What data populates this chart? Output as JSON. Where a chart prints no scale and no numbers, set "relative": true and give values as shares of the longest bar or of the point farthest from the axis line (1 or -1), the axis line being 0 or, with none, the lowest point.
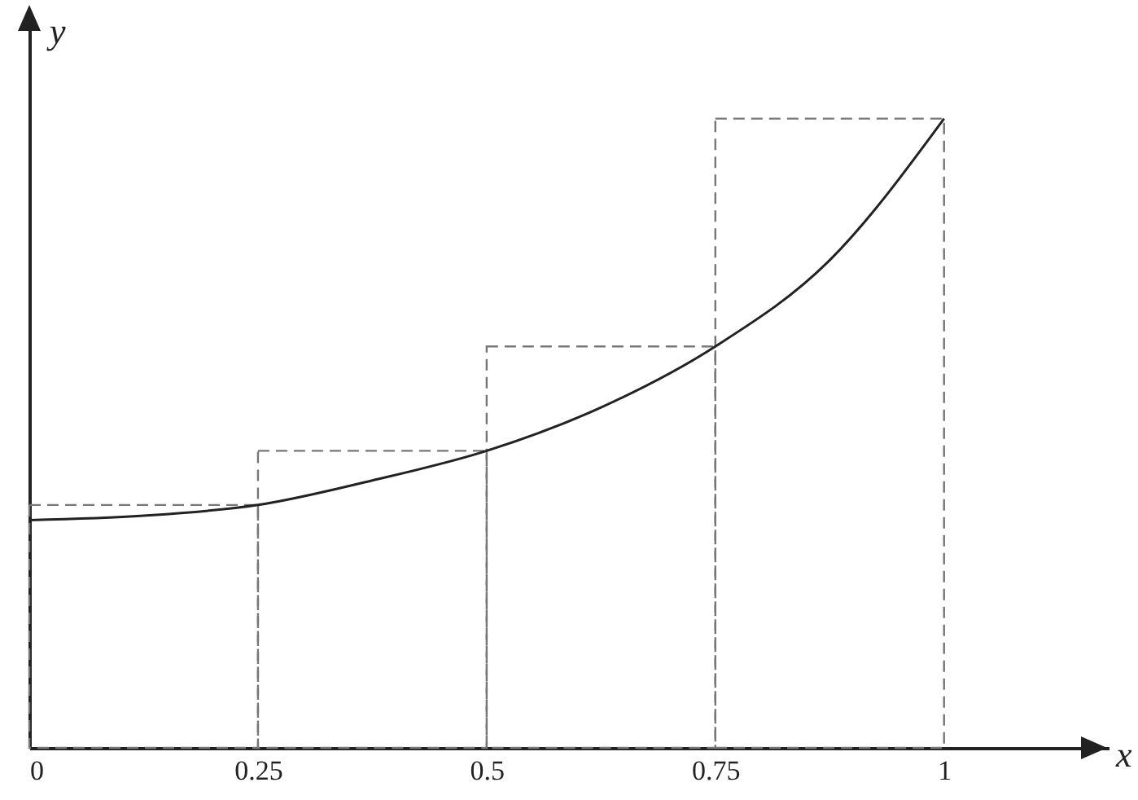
{
  "chart_data": {
    "type": "line",
    "xlabel": "x",
    "ylabel": "y",
    "relative": true,
    "xlim": [
      0,
      1.18
    ],
    "xticks": [
      0,
      0.25,
      0.5,
      0.75,
      1
    ],
    "grid": false,
    "series": [
      {
        "type": "histogram",
        "color": "#777777",
        "line_style": "dashed",
        "bins": [
          0,
          0.25,
          0.5,
          0.75,
          1
        ],
        "values": [
          0.386,
          0.472,
          0.638,
          1
        ]
      },
      {
        "color": "#222222",
        "line_style": "solid",
        "x": [
          0,
          0.125,
          0.25,
          0.375,
          0.5,
          0.625,
          0.75,
          0.875,
          1
        ],
        "values": [
          0.362,
          0.369,
          0.386,
          0.425,
          0.472,
          0.541,
          0.638,
          0.775,
          1
        ]
      }
    ]
  }
}
